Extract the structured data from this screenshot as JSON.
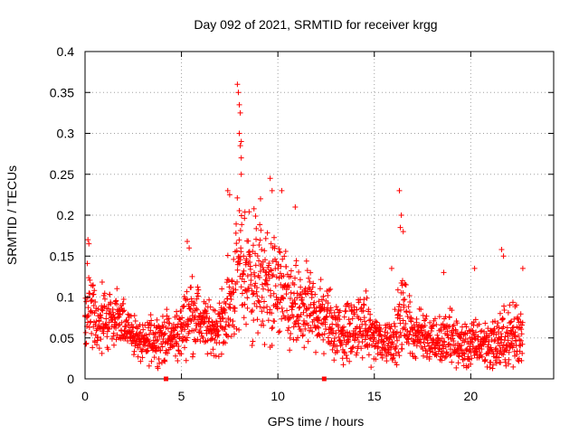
{
  "chart_data": {
    "type": "scatter",
    "title": "Day 092 of 2021, SRMTID for receiver krgg",
    "xlabel": "GPS time / hours",
    "ylabel": "SRMTID / TECUs",
    "xlim": [
      0,
      24.3
    ],
    "ylim": [
      0,
      0.4
    ],
    "xticks": [
      0,
      5,
      10,
      15,
      20
    ],
    "xtick_labels": [
      "0",
      "5",
      "10",
      "15",
      "20"
    ],
    "yticks": [
      0,
      0.05,
      0.1,
      0.15,
      0.2,
      0.25,
      0.3,
      0.35,
      0.4
    ],
    "ytick_labels": [
      "0",
      "0.05",
      "0.1",
      "0.15",
      "0.2",
      "0.25",
      "0.3",
      "0.35",
      "0.4"
    ],
    "grid": true,
    "marker": "+",
    "color": "#ff0000",
    "axis_marks": [
      4.2,
      12.4
    ],
    "series": [
      {
        "name": "SRMTID",
        "profile_hours": [
          0,
          0.2,
          0.5,
          1,
          1.5,
          2,
          2.5,
          3,
          3.5,
          4,
          4.5,
          5,
          5.5,
          6,
          6.5,
          7,
          7.5,
          8,
          8.5,
          9,
          9.5,
          10,
          10.5,
          11,
          11.5,
          12,
          12.5,
          13,
          13.5,
          14,
          14.5,
          15,
          15.5,
          16,
          16.5,
          17,
          17.5,
          18,
          18.5,
          19,
          19.5,
          20,
          20.5,
          21,
          21.5,
          22,
          22.5,
          22.7
        ],
        "profile_median": [
          0.065,
          0.1,
          0.07,
          0.07,
          0.075,
          0.065,
          0.055,
          0.04,
          0.05,
          0.05,
          0.05,
          0.06,
          0.085,
          0.07,
          0.06,
          0.065,
          0.09,
          0.14,
          0.13,
          0.12,
          0.11,
          0.11,
          0.09,
          0.08,
          0.085,
          0.08,
          0.075,
          0.06,
          0.055,
          0.06,
          0.065,
          0.05,
          0.045,
          0.05,
          0.08,
          0.055,
          0.055,
          0.05,
          0.045,
          0.05,
          0.04,
          0.04,
          0.045,
          0.04,
          0.045,
          0.05,
          0.055,
          0.06
        ],
        "profile_spread": [
          0.02,
          0.04,
          0.025,
          0.025,
          0.025,
          0.02,
          0.02,
          0.015,
          0.02,
          0.02,
          0.02,
          0.025,
          0.03,
          0.025,
          0.02,
          0.025,
          0.04,
          0.06,
          0.06,
          0.05,
          0.05,
          0.045,
          0.04,
          0.035,
          0.035,
          0.03,
          0.03,
          0.025,
          0.025,
          0.025,
          0.025,
          0.02,
          0.02,
          0.02,
          0.035,
          0.02,
          0.02,
          0.02,
          0.02,
          0.025,
          0.02,
          0.02,
          0.02,
          0.02,
          0.025,
          0.025,
          0.03,
          0.03
        ],
        "peaks": [
          {
            "x": 7.9,
            "y": 0.36
          },
          {
            "x": 7.95,
            "y": 0.35
          },
          {
            "x": 8.0,
            "y": 0.335
          },
          {
            "x": 8.05,
            "y": 0.325
          },
          {
            "x": 8.0,
            "y": 0.3
          },
          {
            "x": 8.1,
            "y": 0.29
          },
          {
            "x": 8.05,
            "y": 0.285
          },
          {
            "x": 8.1,
            "y": 0.27
          },
          {
            "x": 7.4,
            "y": 0.23
          },
          {
            "x": 7.5,
            "y": 0.225
          },
          {
            "x": 8.1,
            "y": 0.25
          },
          {
            "x": 9.6,
            "y": 0.245
          },
          {
            "x": 9.7,
            "y": 0.23
          },
          {
            "x": 10.2,
            "y": 0.23
          },
          {
            "x": 9.1,
            "y": 0.22
          },
          {
            "x": 10.9,
            "y": 0.21
          },
          {
            "x": 16.3,
            "y": 0.23
          },
          {
            "x": 16.4,
            "y": 0.2
          },
          {
            "x": 16.35,
            "y": 0.185
          },
          {
            "x": 16.5,
            "y": 0.18
          },
          {
            "x": 0.15,
            "y": 0.17
          },
          {
            "x": 0.2,
            "y": 0.165
          },
          {
            "x": 5.3,
            "y": 0.168
          },
          {
            "x": 5.4,
            "y": 0.16
          },
          {
            "x": 21.6,
            "y": 0.158
          },
          {
            "x": 21.7,
            "y": 0.15
          },
          {
            "x": 22.7,
            "y": 0.135
          },
          {
            "x": 20.2,
            "y": 0.135
          },
          {
            "x": 18.6,
            "y": 0.13
          },
          {
            "x": 15.9,
            "y": 0.135
          }
        ]
      }
    ]
  }
}
